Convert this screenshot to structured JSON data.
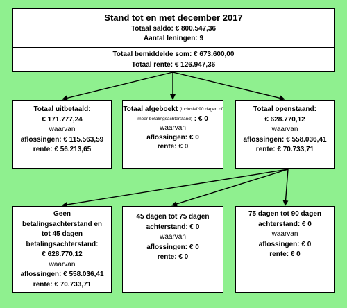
{
  "top": {
    "title": "Stand tot en met december 2017",
    "saldo": "Totaal saldo: € 800.547,36",
    "leningen": "Aantal leningen: 9"
  },
  "totals": {
    "bemiddeld": "Totaal bemiddelde som: € 673.600,00",
    "rente": "Totaal rente: € 126.947,36"
  },
  "uitbetaald": {
    "title": "Totaal uitbetaald:",
    "amount": "€ 171.777,24",
    "waarvan": "waarvan",
    "aflossingen": "aflossingen: € 115.563,59",
    "rente": "rente: € 56.213,65"
  },
  "afgeboekt": {
    "title": "Totaal afgeboekt",
    "note": "(inclusief 90 dagen of meer betalingsachterstand)",
    "amount": ": € 0",
    "waarvan": "waarvan",
    "aflossingen": "aflossingen: € 0",
    "rente": "rente: € 0"
  },
  "openstaand": {
    "title": "Totaal openstaand:",
    "amount": "€ 628.770,12",
    "waarvan": "waarvan",
    "aflossingen": "aflossingen: € 558.036,41",
    "rente": "rente: € 70.733,71"
  },
  "geen": {
    "title": "Geen betalingsachterstand en tot 45 dagen betalingsachterstand:",
    "amount": "€ 628.770,12",
    "waarvan": "waarvan",
    "aflossingen": "aflossingen: € 558.036,41",
    "rente": "rente: € 70.733,71"
  },
  "d45": {
    "title": "45 dagen tot 75 dagen",
    "amount": "achterstand: € 0",
    "waarvan": "waarvan",
    "aflossingen": "aflossingen: € 0",
    "rente": "rente: € 0"
  },
  "d75": {
    "title": "75 dagen tot 90 dagen",
    "amount": "achterstand: € 0",
    "waarvan": "waarvan",
    "aflossingen": "aflossingen: € 0",
    "rente": "rente: € 0"
  }
}
